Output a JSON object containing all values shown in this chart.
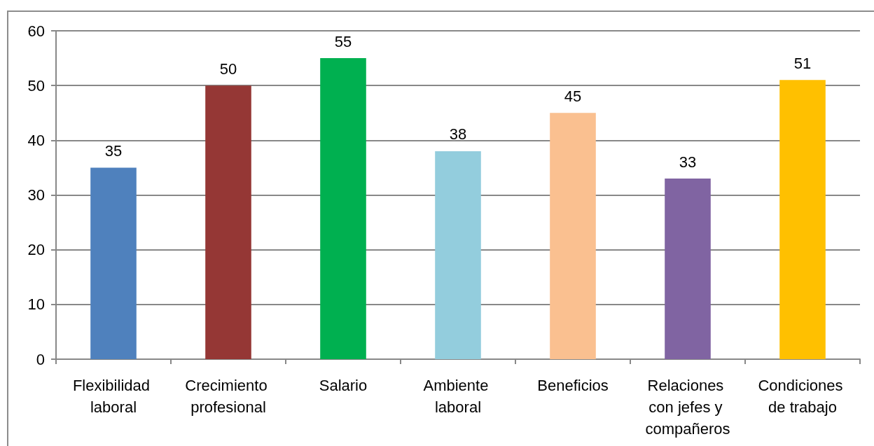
{
  "chart_data": {
    "type": "bar",
    "categories": [
      "Flexibilidad laboral",
      "Crecimiento profesional",
      "Salario",
      "Ambiente laboral",
      "Beneficios",
      "Relaciones con jefes y compañeros",
      "Condiciones de trabajo"
    ],
    "values": [
      35,
      50,
      55,
      38,
      45,
      33,
      51
    ],
    "colors": [
      "#4f81bd",
      "#953735",
      "#00b050",
      "#93cddd",
      "#fac090",
      "#8064a2",
      "#ffc000"
    ],
    "ylim": [
      0,
      60
    ],
    "yticks": [
      0,
      10,
      20,
      30,
      40,
      50,
      60
    ],
    "grid": "y",
    "data_labels": true
  }
}
